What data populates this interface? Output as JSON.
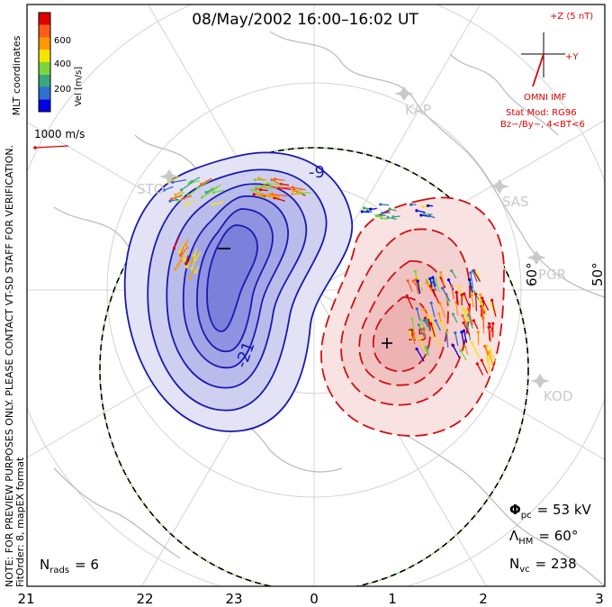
{
  "title": "08/May/2002 16:00–16:02 UT",
  "colorbar": {
    "label": "Vel [m/s]",
    "ticks": [
      "600",
      "400",
      "200"
    ],
    "colors": [
      "#0000e6",
      "#2f6fcf",
      "#3aa87a",
      "#7ad63a",
      "#f5e400",
      "#ff9900",
      "#ff5a1a",
      "#e00000"
    ]
  },
  "mlt_label": "MLT coordinates",
  "ref_vector": {
    "label": "1000 m/s",
    "color": "#e00000"
  },
  "imf": {
    "z_label": "+Z (5 nT)",
    "y_label": "+Y",
    "source": "OMNI IMF",
    "model": "Stat Mod: RG96",
    "condition": "Bz−/By−, 4<BT<6",
    "color": "#e00000"
  },
  "note": {
    "line1": "NOTE: FOR PREVIEW PURPOSES ONLY. PLEASE CONTACT VT-SD STAFF FOR VERIFICATION.",
    "line2": "FitOrder: 8, mapEX format"
  },
  "stations": [
    "KAP",
    "SAS",
    "PGR",
    "KOD",
    "STO"
  ],
  "lat_labels": [
    "60°",
    "50°"
  ],
  "contours": {
    "negative_labels": [
      "-9",
      "-21"
    ],
    "positive_labels": [
      "15"
    ]
  },
  "stats": {
    "potential_symbol": "Φ",
    "potential_sub": "pc",
    "potential_value": "= 53 kV",
    "hm_symbol": "Λ",
    "hm_sub": "HM",
    "hm_value": "= 60°",
    "nvc_symbol": "N",
    "nvc_sub": "vc",
    "nvc_value": "= 238",
    "nrads_symbol": "N",
    "nrads_sub": "rads",
    "nrads_value": "= 6"
  },
  "mlt_axis": [
    "21",
    "22",
    "23",
    "0",
    "1",
    "2",
    "3"
  ],
  "colors": {
    "negative_cell": "#1a1ab0",
    "positive_cell": "#d01010",
    "coast": "#bdbdbd",
    "grid": "#c9c9c9"
  }
}
